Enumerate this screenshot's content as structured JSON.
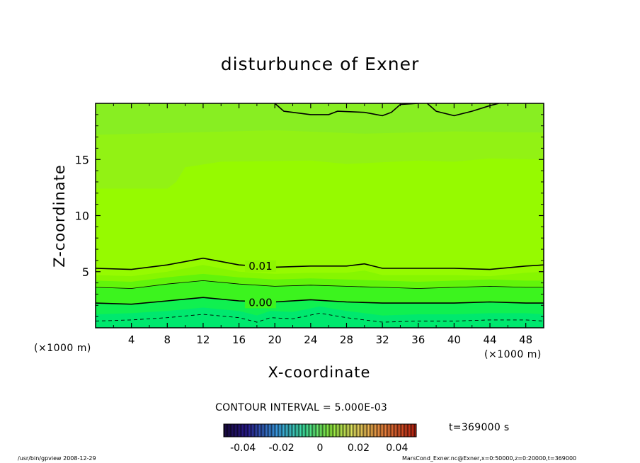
{
  "chart_data": {
    "type": "heatmap",
    "title": "disturbunce of Exner",
    "xlabel": "X-coordinate",
    "ylabel": "Z-coordinate",
    "x_units": "(×1000 m)",
    "y_units": "(×1000 m)",
    "xlim": [
      0,
      50
    ],
    "ylim": [
      0,
      20
    ],
    "x_ticks": [
      4,
      8,
      12,
      16,
      20,
      24,
      28,
      32,
      36,
      40,
      44,
      48
    ],
    "y_ticks": [
      5,
      10,
      15
    ],
    "contour_interval_label": "CONTOUR INTERVAL = 5.000E-03",
    "contour_levels": [
      -0.005,
      0.0,
      0.005,
      0.01,
      0.015
    ],
    "contour_labels": [
      {
        "text": "0.01",
        "value": 0.01
      },
      {
        "text": "0.00",
        "value": 0.0
      }
    ],
    "contours": [
      {
        "level": -0.005,
        "style": "dashed",
        "points": [
          [
            0,
            0.6
          ],
          [
            4,
            0.7
          ],
          [
            8,
            0.9
          ],
          [
            12,
            1.2
          ],
          [
            16,
            0.9
          ],
          [
            18,
            0.5
          ],
          [
            19.5,
            0.9
          ],
          [
            22,
            0.8
          ],
          [
            25,
            1.3
          ],
          [
            28,
            0.9
          ],
          [
            32,
            0.5
          ],
          [
            36,
            0.6
          ],
          [
            40,
            0.6
          ],
          [
            44,
            0.7
          ],
          [
            48,
            0.7
          ],
          [
            50,
            0.6
          ]
        ]
      },
      {
        "level": 0.0,
        "style": "solid",
        "points": [
          [
            0,
            2.2
          ],
          [
            4,
            2.1
          ],
          [
            8,
            2.4
          ],
          [
            12,
            2.7
          ],
          [
            16,
            2.4
          ],
          [
            20,
            2.3
          ],
          [
            24,
            2.5
          ],
          [
            26,
            2.4
          ],
          [
            28,
            2.3
          ],
          [
            32,
            2.2
          ],
          [
            36,
            2.2
          ],
          [
            40,
            2.2
          ],
          [
            44,
            2.3
          ],
          [
            48,
            2.2
          ],
          [
            50,
            2.2
          ]
        ]
      },
      {
        "level": 0.005,
        "style": "thin",
        "points": [
          [
            0,
            3.6
          ],
          [
            4,
            3.5
          ],
          [
            8,
            3.9
          ],
          [
            12,
            4.2
          ],
          [
            16,
            3.9
          ],
          [
            20,
            3.7
          ],
          [
            24,
            3.8
          ],
          [
            28,
            3.7
          ],
          [
            32,
            3.6
          ],
          [
            36,
            3.5
          ],
          [
            40,
            3.6
          ],
          [
            44,
            3.7
          ],
          [
            48,
            3.6
          ],
          [
            50,
            3.6
          ]
        ]
      },
      {
        "level": 0.01,
        "style": "solid",
        "points": [
          [
            0,
            5.3
          ],
          [
            4,
            5.2
          ],
          [
            8,
            5.6
          ],
          [
            12,
            6.2
          ],
          [
            16,
            5.6
          ],
          [
            20,
            5.4
          ],
          [
            24,
            5.5
          ],
          [
            28,
            5.5
          ],
          [
            30,
            5.7
          ],
          [
            32,
            5.3
          ],
          [
            36,
            5.3
          ],
          [
            40,
            5.3
          ],
          [
            44,
            5.2
          ],
          [
            48,
            5.5
          ],
          [
            50,
            5.6
          ]
        ]
      },
      {
        "level": 0.015,
        "style": "solid",
        "points": [
          [
            20,
            20
          ],
          [
            21,
            19.3
          ],
          [
            24,
            19.0
          ],
          [
            26,
            19.0
          ],
          [
            27,
            19.3
          ],
          [
            30,
            19.2
          ],
          [
            32,
            18.9
          ],
          [
            33,
            19.2
          ],
          [
            34,
            19.9
          ],
          [
            36,
            20
          ]
        ]
      },
      {
        "level": 0.015,
        "style": "solid",
        "points": [
          [
            37,
            20
          ],
          [
            38,
            19.3
          ],
          [
            40,
            18.9
          ],
          [
            42,
            19.3
          ],
          [
            44,
            19.8
          ],
          [
            45,
            20
          ]
        ]
      }
    ],
    "colorbar": {
      "tick_labels": [
        "-0.04",
        "-0.02",
        "0",
        "0.02",
        "0.04"
      ],
      "tick_values": [
        -0.04,
        -0.02,
        0,
        0.02,
        0.04
      ],
      "range": [
        -0.05,
        0.05
      ]
    },
    "time_label": "t=369000 s"
  },
  "footer": {
    "left": "/usr/bin/gpview  2008-12-29",
    "right": "MarsCond_Exner.nc@Exner,x=0:50000,z=0:20000,t=369000"
  },
  "colors": {
    "band_lowest": "#00e86e",
    "band_1": "#10f050",
    "band_2": "#3cf41e",
    "band_3": "#62f40a",
    "band_main": "#96fa00",
    "band_upper": "#92f214",
    "band_top": "#88ee22"
  }
}
